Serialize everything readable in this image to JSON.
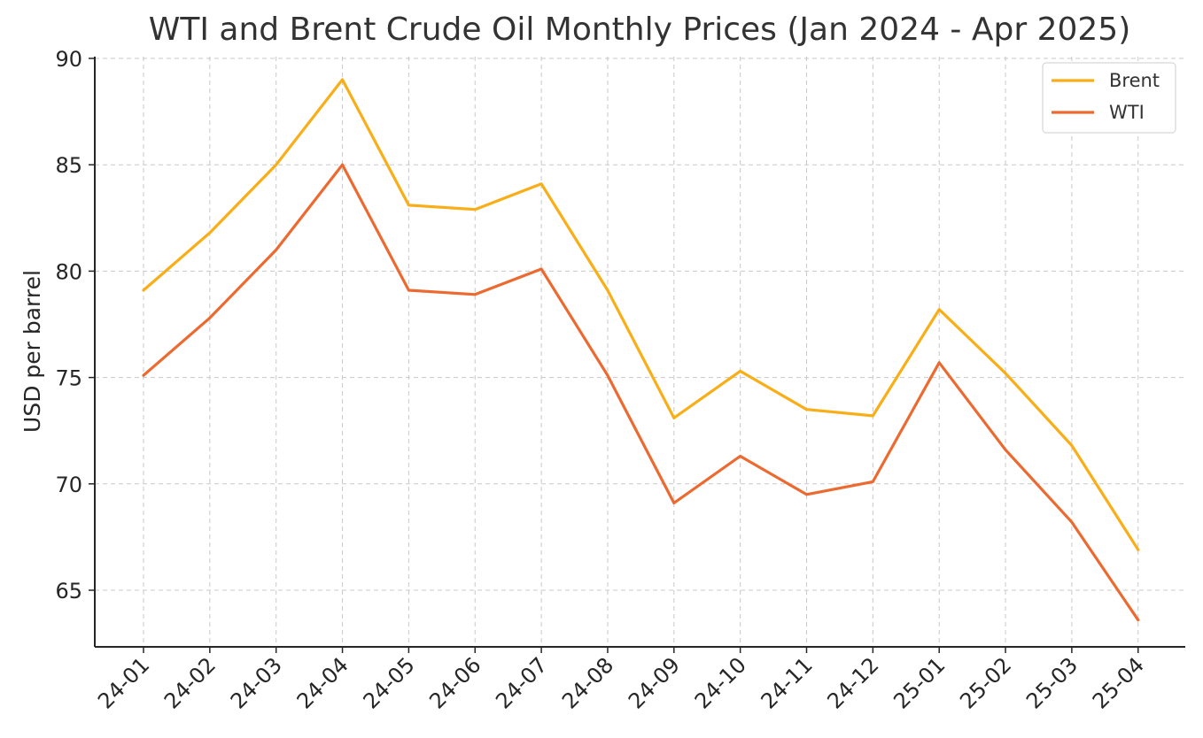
{
  "chart_data": {
    "type": "line",
    "title": "WTI and Brent Crude Oil Monthly Prices (Jan 2024 - Apr 2025)",
    "xlabel": "",
    "ylabel": "USD per barrel",
    "categories": [
      "24-01",
      "24-02",
      "24-03",
      "24-04",
      "24-05",
      "24-06",
      "24-07",
      "24-08",
      "24-09",
      "24-10",
      "24-11",
      "24-12",
      "25-01",
      "25-02",
      "25-03",
      "25-04"
    ],
    "ylim": [
      62.5,
      90
    ],
    "yticks": [
      65,
      70,
      75,
      80,
      85,
      90
    ],
    "grid": true,
    "legend_position": "top-right",
    "series": [
      {
        "name": "Brent",
        "color": "#F9AE17",
        "values": [
          79.1,
          81.8,
          85.0,
          89.0,
          83.1,
          82.9,
          84.1,
          79.1,
          73.1,
          75.3,
          73.5,
          73.2,
          78.2,
          75.2,
          71.8,
          66.9
        ]
      },
      {
        "name": "WTI",
        "color": "#EC6A30",
        "values": [
          75.1,
          77.8,
          81.0,
          85.0,
          79.1,
          78.9,
          80.1,
          75.1,
          69.1,
          71.3,
          69.5,
          70.1,
          75.7,
          71.6,
          68.2,
          63.6
        ]
      }
    ]
  }
}
